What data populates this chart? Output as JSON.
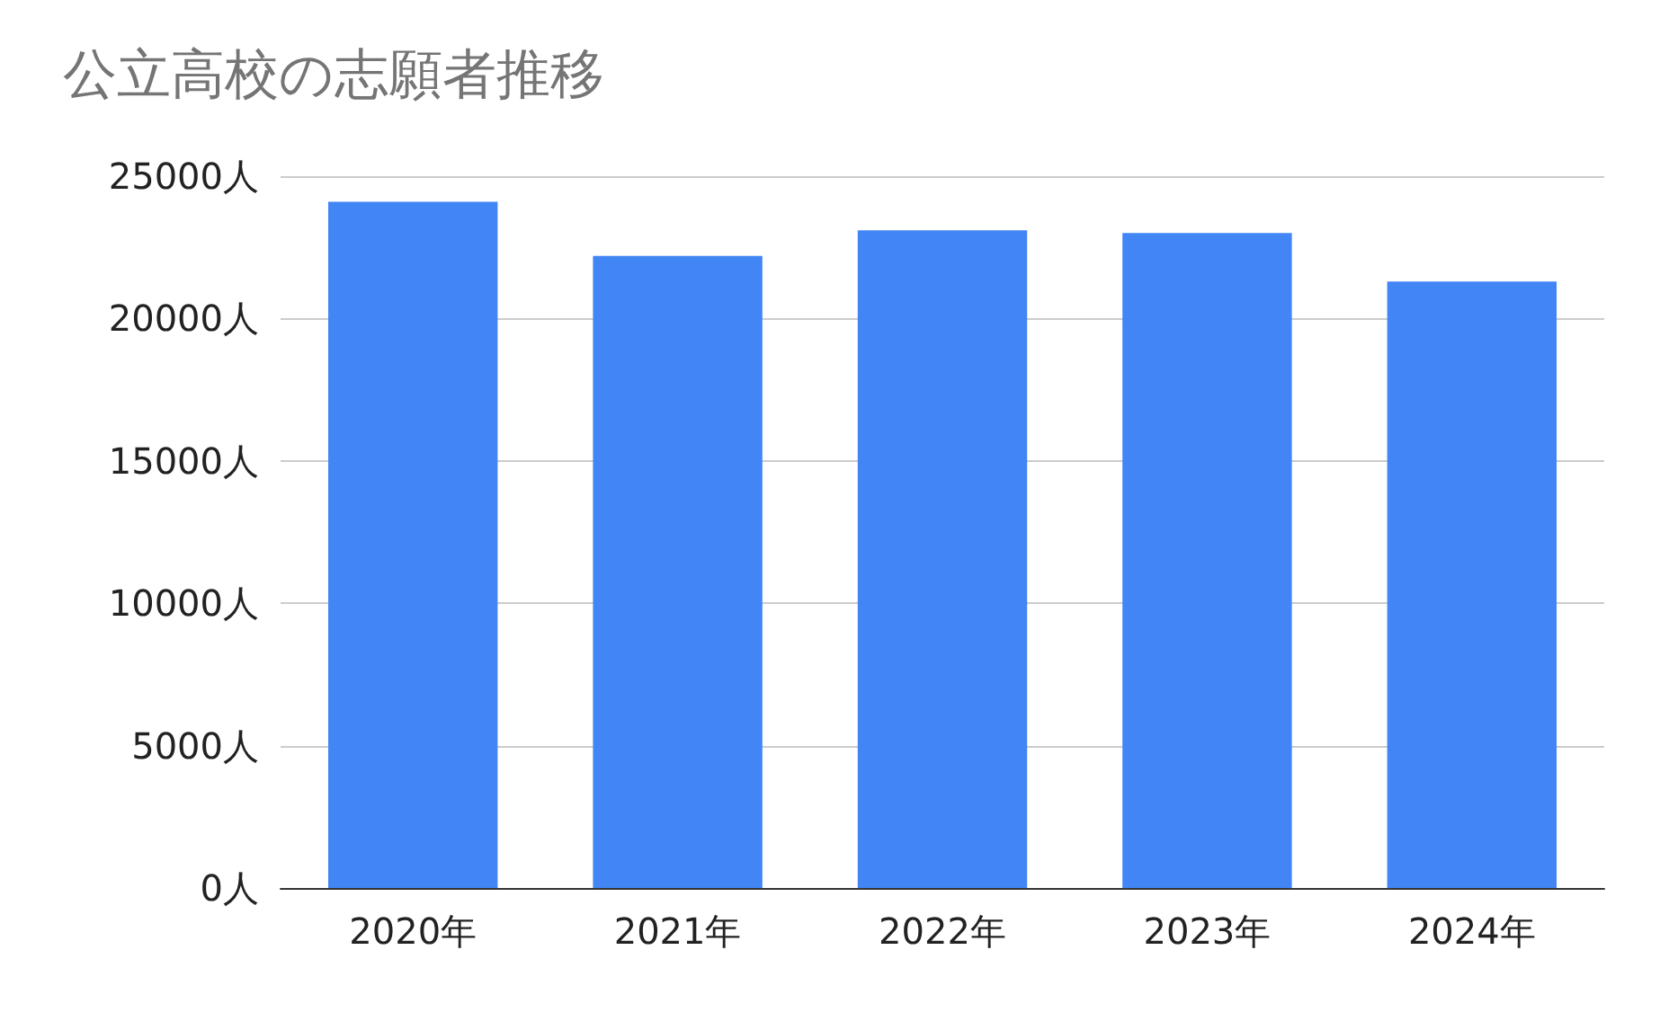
{
  "chart_data": {
    "type": "bar",
    "title": "公立高校の志願者推移",
    "categories": [
      "2020年",
      "2021年",
      "2022年",
      "2023年",
      "2024年"
    ],
    "values": [
      24100,
      22200,
      23100,
      23000,
      21300
    ],
    "color": "#4285f4",
    "ylim": [
      0,
      25000
    ],
    "yticks": [
      {
        "value": 0,
        "label": "0人"
      },
      {
        "value": 5000,
        "label": "5000人"
      },
      {
        "value": 10000,
        "label": "10000人"
      },
      {
        "value": 15000,
        "label": "15000人"
      },
      {
        "value": 20000,
        "label": "20000人"
      },
      {
        "value": 25000,
        "label": "25000人"
      }
    ],
    "grid": "y"
  }
}
